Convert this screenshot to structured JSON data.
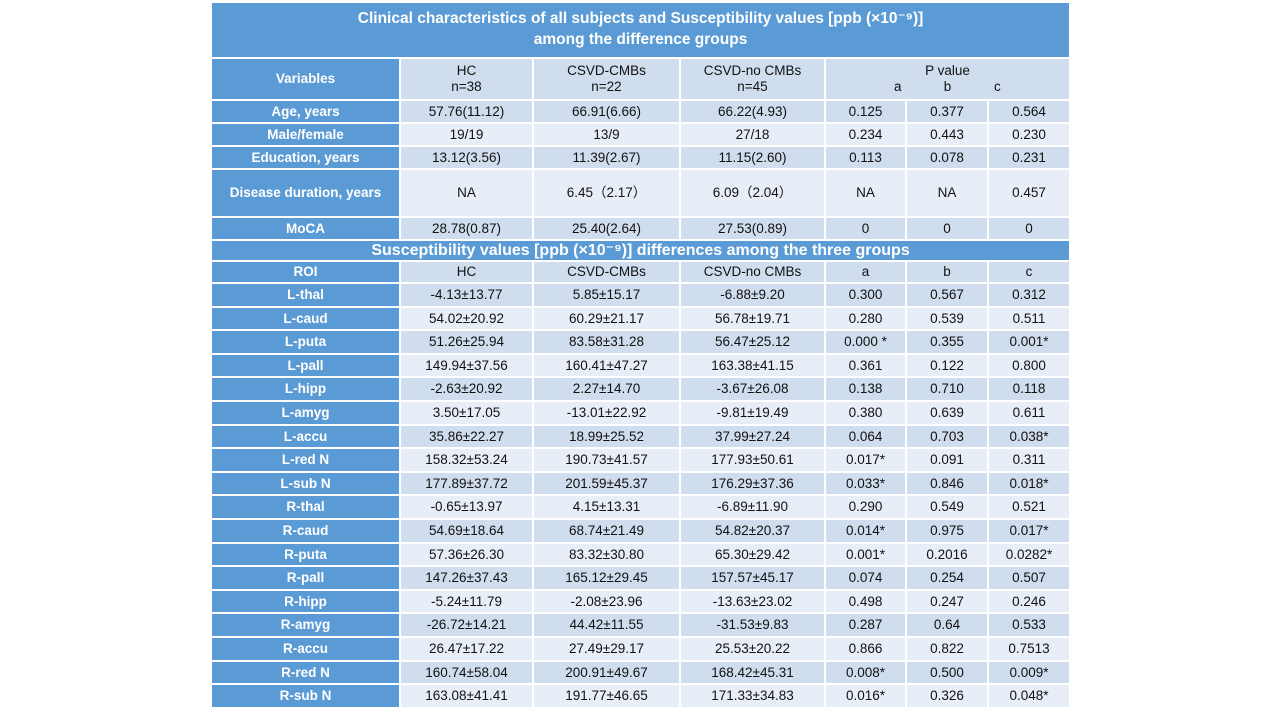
{
  "title_line1": "Clinical characteristics of all subjects and Susceptibility values [ppb (×10⁻⁹)]",
  "title_line2": "among the difference groups",
  "clinical_header": {
    "variables": "Variables",
    "hc": "HC",
    "hc_n": "n=38",
    "cmbs": "CSVD-CMBs",
    "cmbs_n": "n=22",
    "nocmbs": "CSVD-no CMBs",
    "nocmbs_n": "n=45",
    "pvalue": "P value",
    "a": "a",
    "b": "b",
    "c": "c"
  },
  "clinical_rows": [
    {
      "label": "Age, years",
      "hc": "57.76(11.12)",
      "cmbs": "66.91(6.66)",
      "nocmbs": "66.22(4.93)",
      "a": "0.125",
      "b": "0.377",
      "c": "0.564"
    },
    {
      "label": "Male/female",
      "hc": "19/19",
      "cmbs": "13/9",
      "nocmbs": "27/18",
      "a": "0.234",
      "b": "0.443",
      "c": "0.230"
    },
    {
      "label": "Education, years",
      "hc": "13.12(3.56)",
      "cmbs": "11.39(2.67)",
      "nocmbs": "11.15(2.60)",
      "a": "0.113",
      "b": "0.078",
      "c": "0.231"
    },
    {
      "label": "Disease duration, years",
      "hc": "NA",
      "cmbs": "6.45（2.17）",
      "nocmbs": "6.09（2.04）",
      "a": "NA",
      "b": "NA",
      "c": "0.457"
    },
    {
      "label": "MoCA",
      "hc": "28.78(0.87)",
      "cmbs": "25.40(2.64)",
      "nocmbs": "27.53(0.89)",
      "a": "0",
      "b": "0",
      "c": "0"
    }
  ],
  "section2_title": "Susceptibility values [ppb (×10⁻⁹)] differences among the three groups",
  "roi_header": {
    "roi": "ROI",
    "hc": "HC",
    "cmbs": "CSVD-CMBs",
    "nocmbs": "CSVD-no CMBs",
    "a": "a",
    "b": "b",
    "c": "c"
  },
  "roi_rows": [
    {
      "label": "L-thal",
      "hc": "-4.13±13.77",
      "cmbs": "5.85±15.17",
      "nocmbs": "-6.88±9.20",
      "a": "0.300",
      "b": "0.567",
      "c": "0.312"
    },
    {
      "label": "L-caud",
      "hc": "54.02±20.92",
      "cmbs": "60.29±21.17",
      "nocmbs": "56.78±19.71",
      "a": "0.280",
      "b": "0.539",
      "c": "0.511"
    },
    {
      "label": "L-puta",
      "hc": "51.26±25.94",
      "cmbs": "83.58±31.28",
      "nocmbs": "56.47±25.12",
      "a": "0.000 *",
      "b": "0.355",
      "c": "0.001*"
    },
    {
      "label": "L-pall",
      "hc": "149.94±37.56",
      "cmbs": "160.41±47.27",
      "nocmbs": "163.38±41.15",
      "a": "0.361",
      "b": "0.122",
      "c": "0.800"
    },
    {
      "label": "L-hipp",
      "hc": "-2.63±20.92",
      "cmbs": "2.27±14.70",
      "nocmbs": "-3.67±26.08",
      "a": "0.138",
      "b": "0.710",
      "c": "0.118"
    },
    {
      "label": "L-amyg",
      "hc": "3.50±17.05",
      "cmbs": "-13.01±22.92",
      "nocmbs": "-9.81±19.49",
      "a": "0.380",
      "b": "0.639",
      "c": "0.611"
    },
    {
      "label": "L-accu",
      "hc": "35.86±22.27",
      "cmbs": "18.99±25.52",
      "nocmbs": "37.99±27.24",
      "a": "0.064",
      "b": "0.703",
      "c": "0.038*"
    },
    {
      "label": "L-red N",
      "hc": "158.32±53.24",
      "cmbs": "190.73±41.57",
      "nocmbs": "177.93±50.61",
      "a": "0.017*",
      "b": "0.091",
      "c": "0.311"
    },
    {
      "label": "L-sub N",
      "hc": "177.89±37.72",
      "cmbs": "201.59±45.37",
      "nocmbs": "176.29±37.36",
      "a": "0.033*",
      "b": "0.846",
      "c": "0.018*"
    },
    {
      "label": "R-thal",
      "hc": "-0.65±13.97",
      "cmbs": "4.15±13.31",
      "nocmbs": "-6.89±11.90",
      "a": "0.290",
      "b": "0.549",
      "c": "0.521"
    },
    {
      "label": "R-caud",
      "hc": "54.69±18.64",
      "cmbs": "68.74±21.49",
      "nocmbs": "54.82±20.37",
      "a": "0.014*",
      "b": "0.975",
      "c": "0.017*"
    },
    {
      "label": "R-puta",
      "hc": "57.36±26.30",
      "cmbs": "83.32±30.80",
      "nocmbs": "65.30±29.42",
      "a": "0.001*",
      "b": "0.2016",
      "c": "0.0282*"
    },
    {
      "label": "R-pall",
      "hc": "147.26±37.43",
      "cmbs": "165.12±29.45",
      "nocmbs": "157.57±45.17",
      "a": "0.074",
      "b": "0.254",
      "c": "0.507"
    },
    {
      "label": "R-hipp",
      "hc": "-5.24±11.79",
      "cmbs": "-2.08±23.96",
      "nocmbs": "-13.63±23.02",
      "a": "0.498",
      "b": "0.247",
      "c": "0.246"
    },
    {
      "label": "R-amyg",
      "hc": "-26.72±14.21",
      "cmbs": "44.42±11.55",
      "nocmbs": "-31.53±9.83",
      "a": "0.287",
      "b": "0.64",
      "c": "0.533"
    },
    {
      "label": "R-accu",
      "hc": "26.47±17.22",
      "cmbs": "27.49±29.17",
      "nocmbs": "25.53±20.22",
      "a": "0.866",
      "b": "0.822",
      "c": "0.7513"
    },
    {
      "label": "R-red N",
      "hc": "160.74±58.04",
      "cmbs": "200.91±49.67",
      "nocmbs": "168.42±45.31",
      "a": "0.008*",
      "b": "0.500",
      "c": "0.009*"
    },
    {
      "label": "R-sub N",
      "hc": "163.08±41.41",
      "cmbs": "191.77±46.65",
      "nocmbs": "171.33±34.83",
      "a": "0.016*",
      "b": "0.326",
      "c": "0.048*"
    }
  ]
}
